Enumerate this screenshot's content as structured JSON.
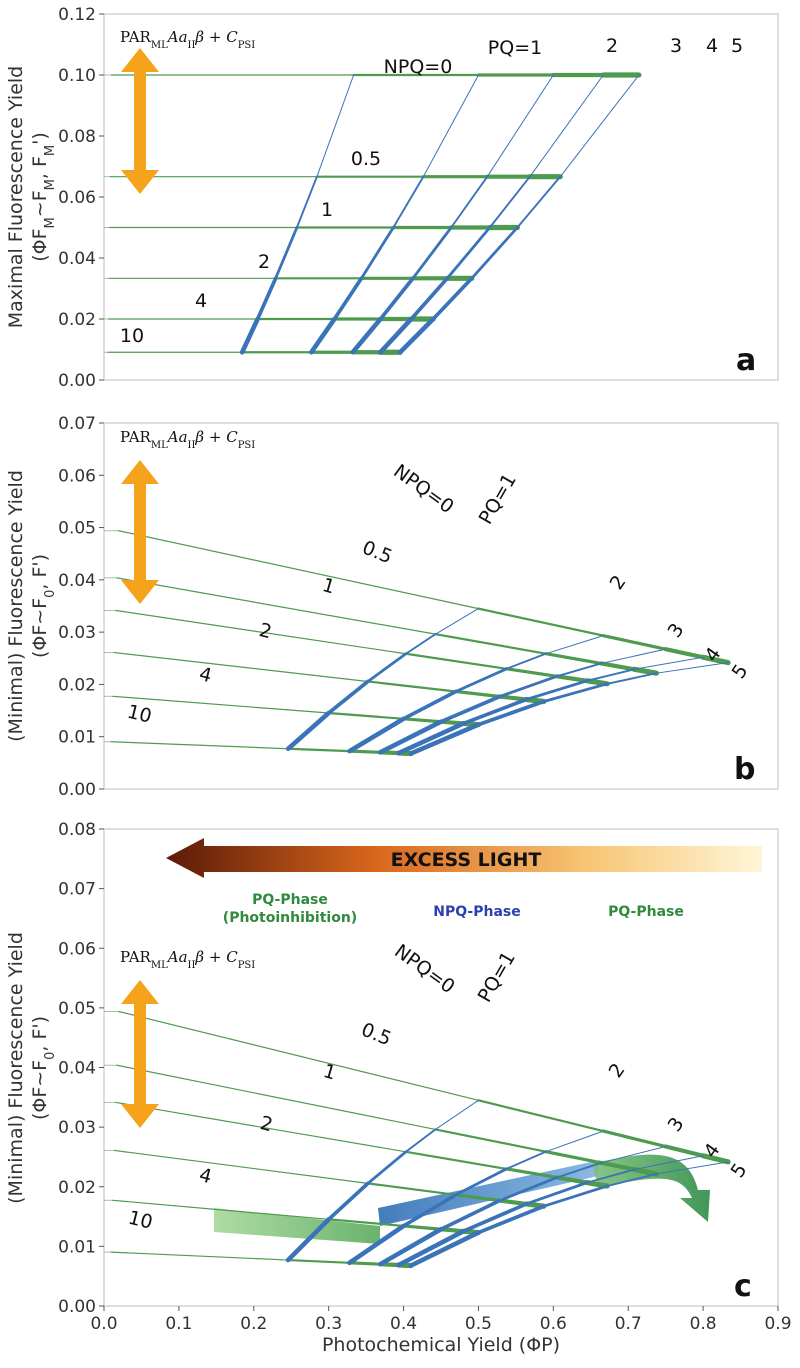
{
  "figure": {
    "xlabel": "Photochemical Yield (ΦP)",
    "x_ticks": [
      "0.0",
      "0.1",
      "0.2",
      "0.3",
      "0.4",
      "0.5",
      "0.6",
      "0.7",
      "0.8",
      "0.9"
    ],
    "colors": {
      "pq_line": "#4e9a4e",
      "npq_line": "#3a73b8",
      "arrow": "#f5a31a",
      "frame": "#c8c8c8"
    }
  },
  "chart_data": [
    {
      "type": "line",
      "panel_letter": "a",
      "ylabel_line1": "Maximal Fluorescence Yield",
      "ylabel_line2": "(ΦF",
      "ylabel_sub1": "M",
      "ylabel_mid": "~F",
      "ylabel_sub2": "M",
      "ylabel_tail": ", F",
      "ylabel_sub3": "M",
      "ylabel_end": "')",
      "formula": "PAR",
      "formula_sub1": "ML",
      "formula_mid": "Aa",
      "formula_sub2": "II",
      "formula_beta": "β + C",
      "formula_sub3": "PSI",
      "xlim": [
        0,
        0.9
      ],
      "ylim": [
        0,
        0.12
      ],
      "y_ticks": [
        "0.00",
        "0.02",
        "0.04",
        "0.06",
        "0.08",
        "0.10",
        "0.12"
      ],
      "npq_labels": [
        "NPQ=0",
        "0.5",
        "1",
        "2",
        "4",
        "10"
      ],
      "pq_labels": [
        "PQ=1",
        "2",
        "3",
        "4",
        "5"
      ],
      "pq_values": [
        1,
        2,
        3,
        4,
        5
      ],
      "npq_values": [
        0,
        0.5,
        1,
        2,
        4,
        10
      ],
      "fluorescence_min": 0.009,
      "fluorescence_max": 0.1
    },
    {
      "type": "line",
      "panel_letter": "b",
      "ylabel_line1": "(Minimal) Fluorescence Yield",
      "ylabel_line2": "(ΦF~F",
      "ylabel_sub1": "0",
      "ylabel_tail": ", F')",
      "formula": "PAR",
      "formula_sub1": "ML",
      "formula_mid": "Aa",
      "formula_sub2": "II",
      "formula_beta": "β + C",
      "formula_sub3": "PSI",
      "xlim": [
        0,
        0.9
      ],
      "ylim": [
        0,
        0.07
      ],
      "y_ticks": [
        "0.00",
        "0.01",
        "0.02",
        "0.03",
        "0.04",
        "0.05",
        "0.06",
        "0.07"
      ],
      "npq_labels": [
        "NPQ=0",
        "0.5",
        "1",
        "2",
        "4",
        "10"
      ],
      "pq_labels": [
        "PQ=1",
        "2",
        "3",
        "4",
        "5"
      ],
      "pq_values": [
        1,
        2,
        3,
        4,
        5
      ],
      "npq_values": [
        0,
        0.5,
        1,
        2,
        4,
        10
      ]
    },
    {
      "type": "line",
      "panel_letter": "c",
      "ylabel_line1": "(Minimal) Fluorescence Yield",
      "ylabel_line2": "(ΦF~F",
      "ylabel_sub1": "0",
      "ylabel_tail": ", F')",
      "formula": "PAR",
      "formula_sub1": "ML",
      "formula_mid": "Aa",
      "formula_sub2": "II",
      "formula_beta": "β + C",
      "formula_sub3": "PSI",
      "xlim": [
        0,
        0.9
      ],
      "ylim": [
        0,
        0.08
      ],
      "y_ticks": [
        "0.00",
        "0.01",
        "0.02",
        "0.03",
        "0.04",
        "0.05",
        "0.06",
        "0.07",
        "0.08"
      ],
      "npq_labels": [
        "NPQ=0",
        "0.5",
        "1",
        "2",
        "4",
        "10"
      ],
      "pq_labels": [
        "PQ=1",
        "2",
        "3",
        "4",
        "5"
      ],
      "pq_values": [
        1,
        2,
        3,
        4,
        5
      ],
      "npq_values": [
        0,
        0.5,
        1,
        2,
        4,
        10
      ],
      "excess_light": "EXCESS LIGHT",
      "phase_pq_photoinhibition_line1": "PQ-Phase",
      "phase_pq_photoinhibition_line2": "(Photoinhibition)",
      "phase_npq": "NPQ-Phase",
      "phase_pq": "PQ-Phase"
    }
  ]
}
